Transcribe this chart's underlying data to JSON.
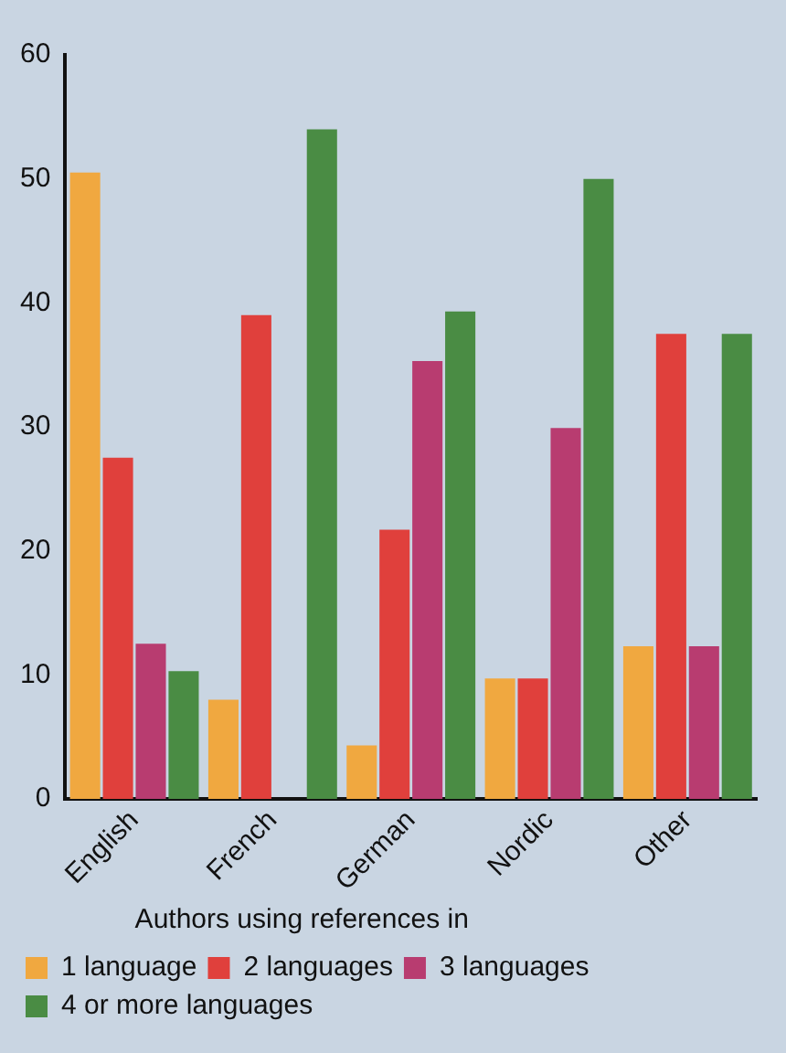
{
  "chart_data": {
    "type": "bar",
    "categories": [
      "English",
      "French",
      "German",
      "Nordic",
      "Other"
    ],
    "series": [
      {
        "name": "1 language",
        "color": "#f0a840",
        "values": [
          50.5,
          8,
          4.3,
          9.7,
          12.3
        ]
      },
      {
        "name": "2 languages",
        "color": "#e0403c",
        "values": [
          27.5,
          39,
          21.7,
          9.7,
          37.5
        ]
      },
      {
        "name": "3 languages",
        "color": "#b83c70",
        "values": [
          12.5,
          0,
          35.3,
          29.9,
          12.3
        ]
      },
      {
        "name": "4 or more languages",
        "color": "#4a8c44",
        "values": [
          10.3,
          54,
          39.3,
          50,
          37.5
        ]
      }
    ],
    "ylim": [
      0,
      60
    ],
    "yticks": [
      0,
      10,
      20,
      30,
      40,
      50,
      60
    ],
    "grid": false,
    "legend": "bottom",
    "legend_title": "Authors using references in"
  }
}
